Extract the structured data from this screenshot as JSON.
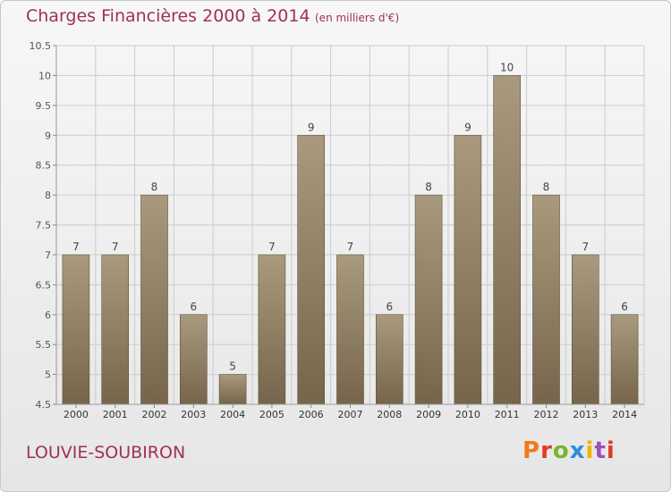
{
  "header": {
    "title": "Charges Financières 2000 à 2014",
    "unit": "(en milliers d'€)"
  },
  "footer": {
    "commune": "LOUVIE-SOUBIRON",
    "brand_letters": [
      "P",
      "r",
      "o",
      "x",
      "i",
      "t",
      "i"
    ],
    "brand_colors": [
      "#f07a1a",
      "#e23a2a",
      "#7ab52e",
      "#2c8fd6",
      "#f0b400",
      "#9c4fb8",
      "#e23a2a"
    ]
  },
  "colors": {
    "title": "#a0305a",
    "bar_top": "#a99a7e",
    "bar_bottom": "#76654a",
    "grid": "#cccccc"
  },
  "chart_data": {
    "type": "bar",
    "categories": [
      "2000",
      "2001",
      "2002",
      "2003",
      "2004",
      "2005",
      "2006",
      "2007",
      "2008",
      "2009",
      "2010",
      "2011",
      "2012",
      "2013",
      "2014"
    ],
    "values": [
      7,
      7,
      8,
      6,
      5,
      7,
      9,
      7,
      6,
      8,
      9,
      10,
      8,
      7,
      6
    ],
    "data_labels": [
      "7",
      "7",
      "8",
      "6",
      "5",
      "7",
      "9",
      "7",
      "6",
      "8",
      "9",
      "10",
      "8",
      "7",
      "6"
    ],
    "ylim": [
      4.5,
      10.5
    ],
    "yticks": [
      4.5,
      5,
      5.5,
      6,
      6.5,
      7,
      7.5,
      8,
      8.5,
      9,
      9.5,
      10,
      10.5
    ],
    "ytick_labels": [
      "4.5",
      "5",
      "5.5",
      "6",
      "6.5",
      "7",
      "7.5",
      "8",
      "8.5",
      "9",
      "9.5",
      "10",
      "10.5"
    ],
    "grid": true,
    "xlabel": "",
    "ylabel": ""
  }
}
